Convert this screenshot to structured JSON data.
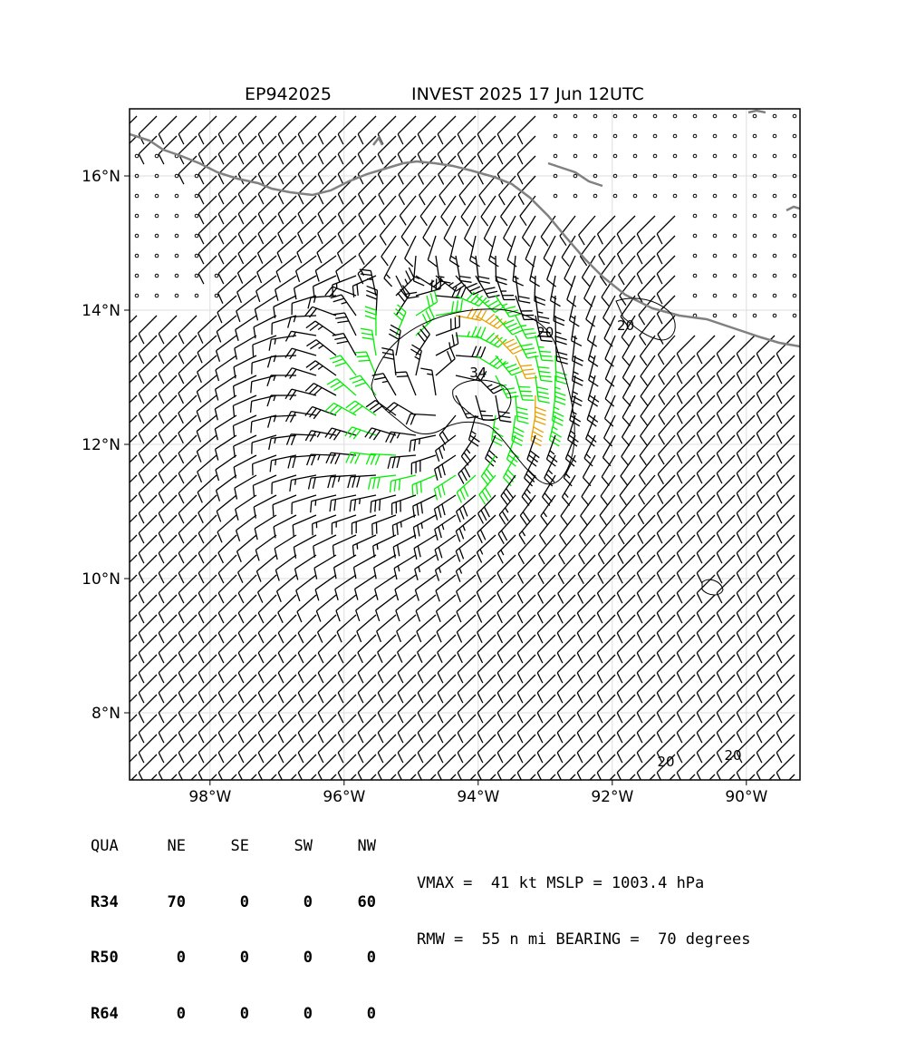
{
  "header": {
    "storm_id": "EP942025",
    "storm_title": "INVEST 2025 17 Jun 12UTC"
  },
  "map": {
    "lon_range": [
      -99.2,
      -89.2
    ],
    "lat_range": [
      7.0,
      17.0
    ],
    "lon_ticks": [
      {
        "value": -98,
        "label": "98°W"
      },
      {
        "value": -96,
        "label": "96°W"
      },
      {
        "value": -94,
        "label": "94°W"
      },
      {
        "value": -92,
        "label": "92°W"
      },
      {
        "value": -90,
        "label": "90°W"
      }
    ],
    "lat_ticks": [
      {
        "value": 8,
        "label": "8°N"
      },
      {
        "value": 10,
        "label": "10°N"
      },
      {
        "value": 12,
        "label": "12°N"
      },
      {
        "value": 14,
        "label": "14°N"
      },
      {
        "value": 16,
        "label": "16°N"
      }
    ],
    "gridlines": true,
    "center": {
      "lon": -94.5,
      "lat": 12.7
    },
    "contour_labels": [
      {
        "text": "34",
        "lon": -94.0,
        "lat": 13.0
      },
      {
        "text": "20",
        "lon": -93.0,
        "lat": 13.6
      },
      {
        "text": "20",
        "lon": -91.8,
        "lat": 13.7
      },
      {
        "text": "20",
        "lon": -91.2,
        "lat": 7.2
      },
      {
        "text": "20",
        "lon": -90.2,
        "lat": 7.3
      }
    ],
    "colors": {
      "coast": "#808080",
      "barb": "#000000",
      "barb_34kt": "#00ee00",
      "barb_50kt": "#e8a000",
      "grid": "#dddddd"
    }
  },
  "quadrants": {
    "headers": [
      "QUA",
      "NE",
      "SE",
      "SW",
      "NW"
    ],
    "rows": [
      {
        "label": "R34",
        "values": [
          "70",
          "0",
          "0",
          "60"
        ]
      },
      {
        "label": "R50",
        "values": [
          "0",
          "0",
          "0",
          "0"
        ]
      },
      {
        "label": "R64",
        "values": [
          "0",
          "0",
          "0",
          "0"
        ]
      }
    ]
  },
  "stats": {
    "line1": "VMAX =  41 kt MSLP = 1003.4 hPa",
    "line2": "RMW =  55 n mi BEARING =  70 degrees"
  }
}
